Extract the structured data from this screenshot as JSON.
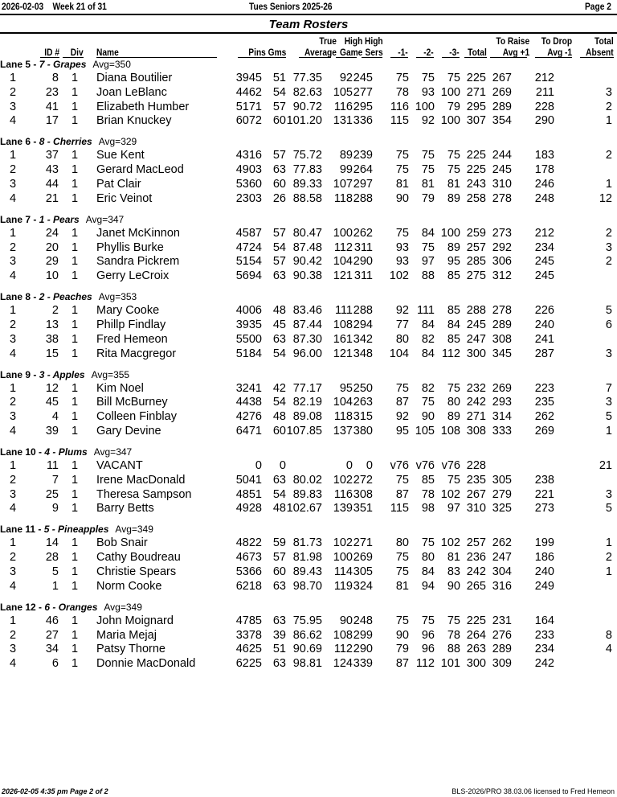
{
  "header": {
    "date": "2026-02-03",
    "week": "Week 21 of 31",
    "league": "Tues Seniors 2025-26",
    "page": "Page 2"
  },
  "title": "Team Rosters",
  "columns": {
    "id": "ID #",
    "div": "Div",
    "name": "Name",
    "pins_gms": "Pins  Gms",
    "true_avg": [
      "True",
      "Average"
    ],
    "high_game": [
      "High",
      "Game"
    ],
    "high_sers": [
      "High",
      "Sers"
    ],
    "g1": "-1-",
    "g2": "-2-",
    "g3": "-3-",
    "total": "Total",
    "to_raise": [
      "To Raise",
      "Avg +1"
    ],
    "to_drop": [
      "To Drop",
      "Avg -1"
    ],
    "absent": [
      "Total",
      "Absent"
    ]
  },
  "lanes": [
    {
      "lane": "Lane 5 -",
      "team": "7 - Grapes",
      "avg": "Avg=350",
      "rows": [
        [
          "1",
          "8",
          "1",
          "Diana Boutilier",
          "3945",
          "51",
          "77.35",
          "92",
          "245",
          "75",
          "75",
          "75",
          "225",
          "267",
          "212",
          ""
        ],
        [
          "2",
          "23",
          "1",
          "Joan LeBlanc",
          "4462",
          "54",
          "82.63",
          "105",
          "277",
          "78",
          "93",
          "100",
          "271",
          "269",
          "211",
          "3"
        ],
        [
          "3",
          "41",
          "1",
          "Elizabeth Humber",
          "5171",
          "57",
          "90.72",
          "116",
          "295",
          "116",
          "100",
          "79",
          "295",
          "289",
          "228",
          "2"
        ],
        [
          "4",
          "17",
          "1",
          "Brian Knuckey",
          "6072",
          "60",
          "101.20",
          "131",
          "336",
          "115",
          "92",
          "100",
          "307",
          "354",
          "290",
          "1"
        ]
      ]
    },
    {
      "lane": "Lane 6 -",
      "team": "8 - Cherries",
      "avg": "Avg=329",
      "rows": [
        [
          "1",
          "37",
          "1",
          "Sue Kent",
          "4316",
          "57",
          "75.72",
          "89",
          "239",
          "75",
          "75",
          "75",
          "225",
          "244",
          "183",
          "2"
        ],
        [
          "2",
          "43",
          "1",
          "Gerard MacLeod",
          "4903",
          "63",
          "77.83",
          "99",
          "264",
          "75",
          "75",
          "75",
          "225",
          "245",
          "178",
          ""
        ],
        [
          "3",
          "44",
          "1",
          "Pat Clair",
          "5360",
          "60",
          "89.33",
          "107",
          "297",
          "81",
          "81",
          "81",
          "243",
          "310",
          "246",
          "1"
        ],
        [
          "4",
          "21",
          "1",
          "Eric Veinot",
          "2303",
          "26",
          "88.58",
          "118",
          "288",
          "90",
          "79",
          "89",
          "258",
          "278",
          "248",
          "12"
        ]
      ]
    },
    {
      "lane": "Lane 7 -",
      "team": "1 - Pears",
      "avg": "Avg=347",
      "rows": [
        [
          "1",
          "24",
          "1",
          "Janet McKinnon",
          "4587",
          "57",
          "80.47",
          "100",
          "262",
          "75",
          "84",
          "100",
          "259",
          "273",
          "212",
          "2"
        ],
        [
          "2",
          "20",
          "1",
          "Phyllis Burke",
          "4724",
          "54",
          "87.48",
          "112",
          "311",
          "93",
          "75",
          "89",
          "257",
          "292",
          "234",
          "3"
        ],
        [
          "3",
          "29",
          "1",
          "Sandra Pickrem",
          "5154",
          "57",
          "90.42",
          "104",
          "290",
          "93",
          "97",
          "95",
          "285",
          "306",
          "245",
          "2"
        ],
        [
          "4",
          "10",
          "1",
          "Gerry LeCroix",
          "5694",
          "63",
          "90.38",
          "121",
          "311",
          "102",
          "88",
          "85",
          "275",
          "312",
          "245",
          ""
        ]
      ]
    },
    {
      "lane": "Lane 8 -",
      "team": "2 - Peaches",
      "avg": "Avg=353",
      "rows": [
        [
          "1",
          "2",
          "1",
          "Mary Cooke",
          "4006",
          "48",
          "83.46",
          "111",
          "288",
          "92",
          "111",
          "85",
          "288",
          "278",
          "226",
          "5"
        ],
        [
          "2",
          "13",
          "1",
          "Phillp Findlay",
          "3935",
          "45",
          "87.44",
          "108",
          "294",
          "77",
          "84",
          "84",
          "245",
          "289",
          "240",
          "6"
        ],
        [
          "3",
          "38",
          "1",
          "Fred Hemeon",
          "5500",
          "63",
          "87.30",
          "161",
          "342",
          "80",
          "82",
          "85",
          "247",
          "308",
          "241",
          ""
        ],
        [
          "4",
          "15",
          "1",
          "Rita Macgregor",
          "5184",
          "54",
          "96.00",
          "121",
          "348",
          "104",
          "84",
          "112",
          "300",
          "345",
          "287",
          "3"
        ]
      ]
    },
    {
      "lane": "Lane 9 -",
      "team": "3 - Apples",
      "avg": "Avg=355",
      "rows": [
        [
          "1",
          "12",
          "1",
          "Kim Noel",
          "3241",
          "42",
          "77.17",
          "95",
          "250",
          "75",
          "82",
          "75",
          "232",
          "269",
          "223",
          "7"
        ],
        [
          "2",
          "45",
          "1",
          "Bill McBurney",
          "4438",
          "54",
          "82.19",
          "104",
          "263",
          "87",
          "75",
          "80",
          "242",
          "293",
          "235",
          "3"
        ],
        [
          "3",
          "4",
          "1",
          "Colleen Finblay",
          "4276",
          "48",
          "89.08",
          "118",
          "315",
          "92",
          "90",
          "89",
          "271",
          "314",
          "262",
          "5"
        ],
        [
          "4",
          "39",
          "1",
          "Gary Devine",
          "6471",
          "60",
          "107.85",
          "137",
          "380",
          "95",
          "105",
          "108",
          "308",
          "333",
          "269",
          "1"
        ]
      ]
    },
    {
      "lane": "Lane 10 -",
      "team": "4 - Plums",
      "avg": "Avg=347",
      "rows": [
        [
          "1",
          "11",
          "1",
          "VACANT",
          "0",
          "0",
          "",
          "0",
          "0",
          "v76",
          "v76",
          "v76",
          "228",
          "",
          "",
          "21"
        ],
        [
          "2",
          "7",
          "1",
          "Irene MacDonald",
          "5041",
          "63",
          "80.02",
          "102",
          "272",
          "75",
          "85",
          "75",
          "235",
          "305",
          "238",
          ""
        ],
        [
          "3",
          "25",
          "1",
          "Theresa Sampson",
          "4851",
          "54",
          "89.83",
          "116",
          "308",
          "87",
          "78",
          "102",
          "267",
          "279",
          "221",
          "3"
        ],
        [
          "4",
          "9",
          "1",
          "Barry Betts",
          "4928",
          "48",
          "102.67",
          "139",
          "351",
          "115",
          "98",
          "97",
          "310",
          "325",
          "273",
          "5"
        ]
      ]
    },
    {
      "lane": "Lane 11 -",
      "team": "5 - Pineapples",
      "avg": "Avg=349",
      "rows": [
        [
          "1",
          "14",
          "1",
          "Bob Snair",
          "4822",
          "59",
          "81.73",
          "102",
          "271",
          "80",
          "75",
          "102",
          "257",
          "262",
          "199",
          "1"
        ],
        [
          "2",
          "28",
          "1",
          "Cathy Boudreau",
          "4673",
          "57",
          "81.98",
          "100",
          "269",
          "75",
          "80",
          "81",
          "236",
          "247",
          "186",
          "2"
        ],
        [
          "3",
          "5",
          "1",
          "Christie Spears",
          "5366",
          "60",
          "89.43",
          "114",
          "305",
          "75",
          "84",
          "83",
          "242",
          "304",
          "240",
          "1"
        ],
        [
          "4",
          "1",
          "1",
          "Norm Cooke",
          "6218",
          "63",
          "98.70",
          "119",
          "324",
          "81",
          "94",
          "90",
          "265",
          "316",
          "249",
          ""
        ]
      ]
    },
    {
      "lane": "Lane 12 -",
      "team": "6 - Oranges",
      "avg": "Avg=349",
      "rows": [
        [
          "1",
          "46",
          "1",
          "John Moignard",
          "4785",
          "63",
          "75.95",
          "90",
          "248",
          "75",
          "75",
          "75",
          "225",
          "231",
          "164",
          ""
        ],
        [
          "2",
          "27",
          "1",
          "Maria Mejaj",
          "3378",
          "39",
          "86.62",
          "108",
          "299",
          "90",
          "96",
          "78",
          "264",
          "276",
          "233",
          "8"
        ],
        [
          "3",
          "34",
          "1",
          "Patsy Thorne",
          "4625",
          "51",
          "90.69",
          "112",
          "290",
          "79",
          "96",
          "88",
          "263",
          "289",
          "234",
          "4"
        ],
        [
          "4",
          "6",
          "1",
          "Donnie MacDonald",
          "6225",
          "63",
          "98.81",
          "124",
          "339",
          "87",
          "112",
          "101",
          "300",
          "309",
          "242",
          ""
        ]
      ]
    }
  ],
  "footer": {
    "left": "2026-02-05  4:35 pm  Page 2 of 2",
    "right": "BLS-2026/PRO 38.03.06 licensed to Fred Hemeon"
  }
}
